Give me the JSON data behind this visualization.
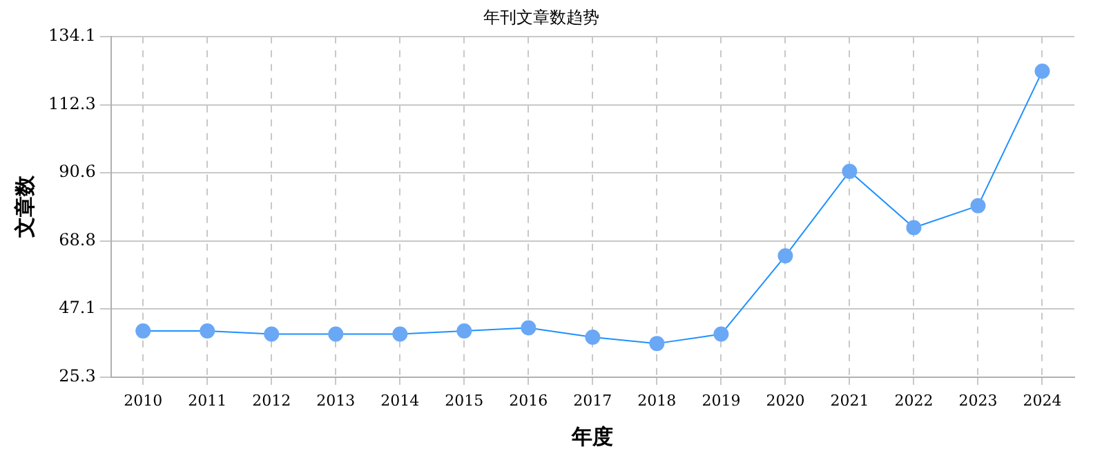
{
  "chart_data": {
    "type": "line",
    "title": "年刊文章数趋势",
    "xlabel": "年度",
    "ylabel": "文章数",
    "categories": [
      "2010",
      "2011",
      "2012",
      "2013",
      "2014",
      "2015",
      "2016",
      "2017",
      "2018",
      "2019",
      "2020",
      "2021",
      "2022",
      "2023",
      "2024"
    ],
    "series": [
      {
        "color": "#1e90ff",
        "values": [
          40,
          40,
          39,
          39,
          39,
          40,
          41,
          38,
          36,
          39,
          64,
          91,
          73,
          80,
          123
        ]
      }
    ],
    "ylim": [
      25.3,
      134.1
    ],
    "yticks": [
      25.3,
      47.1,
      68.8,
      90.6,
      112.3,
      134.1
    ],
    "grid": true,
    "legend": false,
    "marker": "circle",
    "line_style": "solid"
  }
}
